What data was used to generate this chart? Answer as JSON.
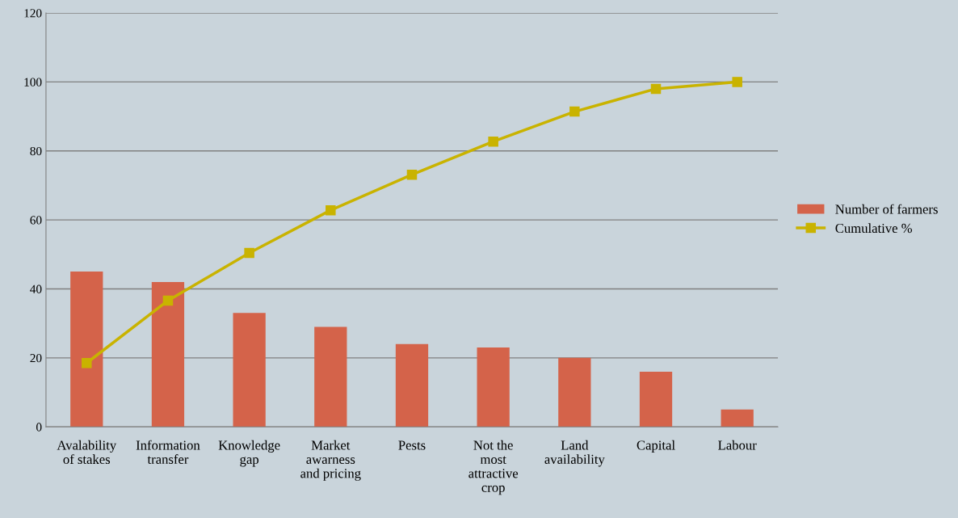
{
  "chart_data": {
    "type": "bar",
    "categories": [
      "Avalability of stakes",
      "Information transfer",
      "Knowledge gap",
      "Market awarness and pricing",
      "Pests",
      "Not the most attractive crop",
      "Land availability",
      "Capital",
      "Labour"
    ],
    "series": [
      {
        "name": "Number of farmers",
        "color": "#d4634a",
        "values": [
          45,
          42,
          33,
          29,
          24,
          23,
          20,
          16,
          5
        ]
      },
      {
        "name": "Cumulative %",
        "type": "line",
        "color": "#c9b300",
        "marker": "square",
        "line_style": "solid",
        "values": [
          18.5,
          36.6,
          50.4,
          62.8,
          73.1,
          82.7,
          91.4,
          98,
          100
        ]
      }
    ],
    "ylim": [
      0,
      120
    ],
    "yticks": [
      0,
      20,
      40,
      60,
      80,
      100,
      120
    ],
    "grid": "y",
    "legend": "right"
  }
}
